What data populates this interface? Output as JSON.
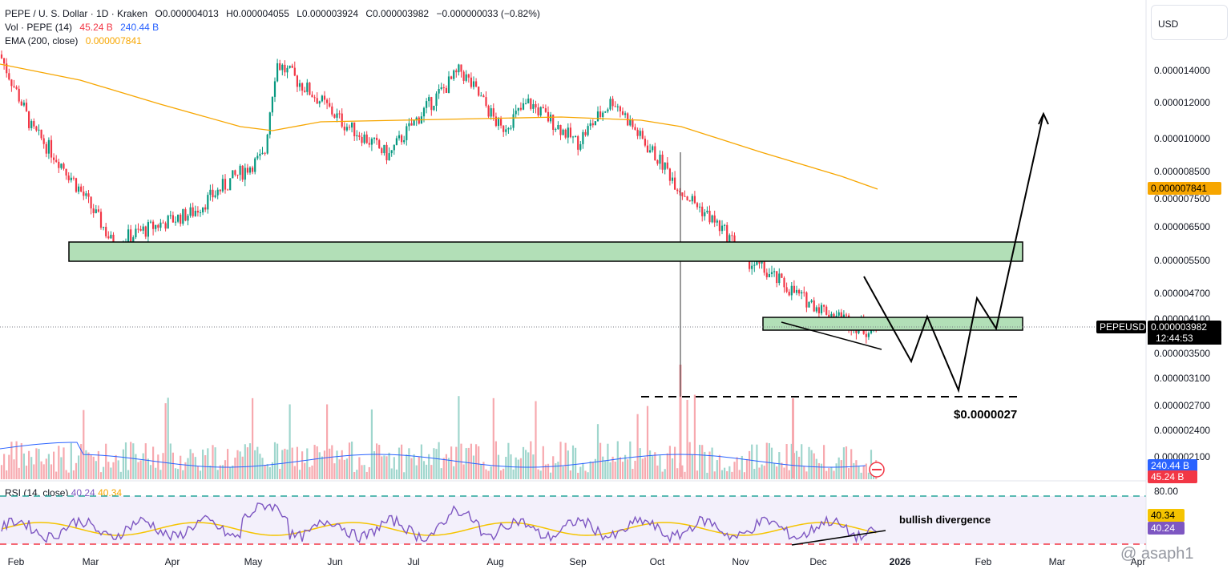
{
  "header": {
    "symbol": "PEPE / U. S. Dollar · 1D · Kraken",
    "open": "O0.000004013",
    "high": "H0.000004055",
    "low": "L0.000003924",
    "close": "C0.000003982",
    "change": "−0.000000033 (−0.82%)",
    "vol_label": "Vol · PEPE (14)",
    "vol_val1": "45.24 B",
    "vol_val2": "240.44 B",
    "ema_label": "EMA (200, close)",
    "ema_val": "0.000007841",
    "rsi_label": "RSI (14, close)",
    "rsi_val1": "40.24",
    "rsi_val2": "40.34"
  },
  "currency": "USD",
  "watermark": "@ asaph1",
  "colors": {
    "up": "#089981",
    "down": "#f23645",
    "ema": "#f7a600",
    "zone": "#b2dfb7",
    "rsi": "#7e57c2",
    "rsi_ma": "#f5c400"
  },
  "chart_data": {
    "type": "candlestick",
    "price_axis_ticks": [
      "0.000014000",
      "0.000012000",
      "0.000010000",
      "0.000008500",
      "0.000007500",
      "0.000006500",
      "0.000005500",
      "0.000004700",
      "0.000004100",
      "0.000003500",
      "0.000003100",
      "0.000002700",
      "0.000002400",
      "0.000002100"
    ],
    "time_axis_ticks": [
      "Feb",
      "Mar",
      "Apr",
      "May",
      "Jun",
      "Jul",
      "Aug",
      "Sep",
      "Oct",
      "Nov",
      "Dec",
      "2026",
      "Feb",
      "Mar",
      "Apr"
    ],
    "ohlc_anchors": [
      {
        "t": "Jan",
        "close": 1.5e-05
      },
      {
        "t": "Feb",
        "close": 1.05e-05
      },
      {
        "t": "Mar",
        "close": 6e-06
      },
      {
        "t": "Apr",
        "close": 7e-06
      },
      {
        "t": "May",
        "close": 9.2e-06
      },
      {
        "t": "May",
        "close": 1.45e-05
      },
      {
        "t": "Jun",
        "close": 1.08e-05
      },
      {
        "t": "Jul",
        "close": 9.2e-06
      },
      {
        "t": "Jul",
        "close": 1.4e-05
      },
      {
        "t": "Aug",
        "close": 1.05e-05
      },
      {
        "t": "Aug",
        "close": 1.2e-05
      },
      {
        "t": "Sep",
        "close": 9.8e-06
      },
      {
        "t": "Sep",
        "close": 1.22e-05
      },
      {
        "t": "Oct",
        "close": 1e-05
      },
      {
        "t": "Oct",
        "close": 7.8e-06
      },
      {
        "t": "Nov",
        "close": 5.5e-06
      },
      {
        "t": "Nov",
        "close": 4.6e-06
      },
      {
        "t": "Dec",
        "close": 4.2e-06
      },
      {
        "t": "Dec",
        "close": 3.9e-06
      }
    ],
    "last_price": "0.000003982",
    "countdown": "12:44:53",
    "symbol_tag": "PEPEUSD",
    "ema_tag": "0.000007841",
    "volume_tags": [
      "240.44 B",
      "45.24 B"
    ],
    "annotations": {
      "target_label": "$0.0000027",
      "rsi_note": "bullish divergence"
    },
    "rsi_axis_ticks": [
      "80.00"
    ],
    "rsi_tags": [
      "40.34",
      "40.24"
    ],
    "rsi_upper": 80,
    "rsi_lower": 20
  }
}
